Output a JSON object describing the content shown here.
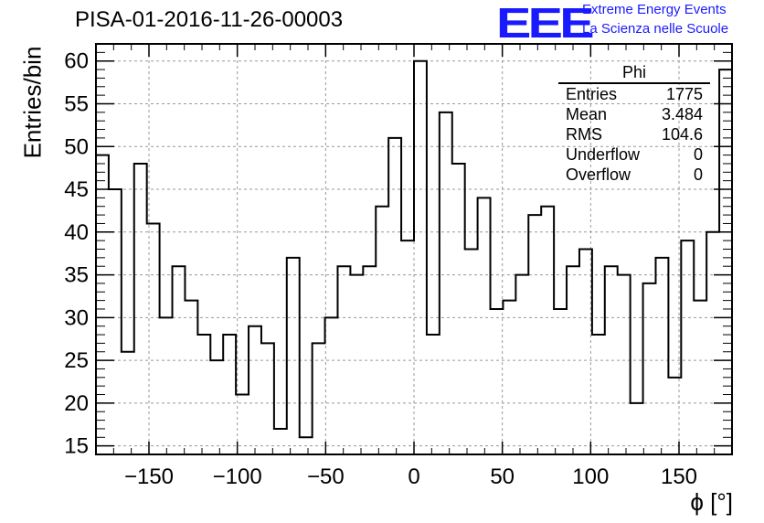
{
  "chart_data": {
    "type": "bar",
    "style": "histogram-step",
    "title": "PISA-01-2016-11-26-00003",
    "xlabel": "ϕ [°]",
    "ylabel": "Entries/bin",
    "xlim": [
      -180,
      180
    ],
    "ylim": [
      14,
      62
    ],
    "bin_width": 7.2,
    "values": [
      49,
      45,
      26,
      48,
      41,
      30,
      36,
      32,
      28,
      25,
      28,
      21,
      29,
      27,
      17,
      37,
      16,
      27,
      30,
      36,
      35,
      36,
      43,
      51,
      39,
      60,
      28,
      54,
      48,
      38,
      44,
      31,
      32,
      35,
      42,
      43,
      31,
      36,
      38,
      28,
      36,
      35,
      20,
      34,
      37,
      23,
      39,
      32,
      40,
      59
    ],
    "x_ticks": [
      -150,
      -100,
      -50,
      0,
      50,
      100,
      150
    ],
    "x_tick_labels": [
      "−150",
      "−100",
      "−50",
      "0",
      "50",
      "100",
      "150"
    ],
    "y_ticks": [
      15,
      20,
      25,
      30,
      35,
      40,
      45,
      50,
      55,
      60
    ],
    "y_tick_labels": [
      "15",
      "20",
      "25",
      "30",
      "35",
      "40",
      "45",
      "50",
      "55",
      "60"
    ],
    "grid": true
  },
  "stats": {
    "title": "Phi",
    "rows": [
      {
        "key": "Entries",
        "value": "1775"
      },
      {
        "key": "Mean",
        "value": "3.484"
      },
      {
        "key": "RMS",
        "value": "104.6"
      },
      {
        "key": "Underflow",
        "value": "0"
      },
      {
        "key": "Overflow",
        "value": "0"
      }
    ]
  },
  "logo": {
    "mark": "EEE",
    "line1": "Extreme Energy Events",
    "line2": "La Scienza nelle Scuole"
  },
  "colors": {
    "line": "#000000",
    "grid": "#999999",
    "logo": "#1a1aff"
  }
}
